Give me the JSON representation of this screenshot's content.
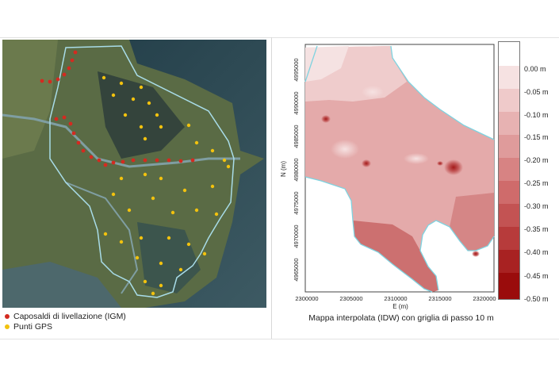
{
  "left_map": {
    "legend": [
      {
        "label": "Caposaldi di livellazione (IGM)",
        "color": "#d42a20"
      },
      {
        "label": "Punti GPS",
        "color": "#f2c20e"
      }
    ]
  },
  "right_map": {
    "caption": "Mappa interpolata (IDW) con griglia di passo 10 m",
    "x_axis_label": "E (m)",
    "y_axis_label": "N (m)",
    "x_ticks": [
      "2300000",
      "2305000",
      "2310000",
      "2315000",
      "2320000"
    ],
    "y_ticks": [
      "4995000",
      "4990000",
      "4985000",
      "4980000",
      "4975000",
      "4970000",
      "4965000"
    ],
    "color_scale": [
      {
        "label": "0.00 m",
        "color": "#ffffff"
      },
      {
        "label": "-0.05 m",
        "color": "#f6e2e2"
      },
      {
        "label": "-0.10 m",
        "color": "#efcaca"
      },
      {
        "label": "-0.15 m",
        "color": "#e7b2b2"
      },
      {
        "label": "-0.20 m",
        "color": "#df9b9b"
      },
      {
        "label": "-0.25 m",
        "color": "#d78383"
      },
      {
        "label": "-0.30 m",
        "color": "#cf6b6b"
      },
      {
        "label": "-0.35 m",
        "color": "#c35353"
      },
      {
        "label": "-0.40 m",
        "color": "#b73b3b"
      },
      {
        "label": "-0.45 m",
        "color": "#a82222"
      },
      {
        "label": "-0.50 m",
        "color": "#9a0c0c"
      }
    ]
  }
}
